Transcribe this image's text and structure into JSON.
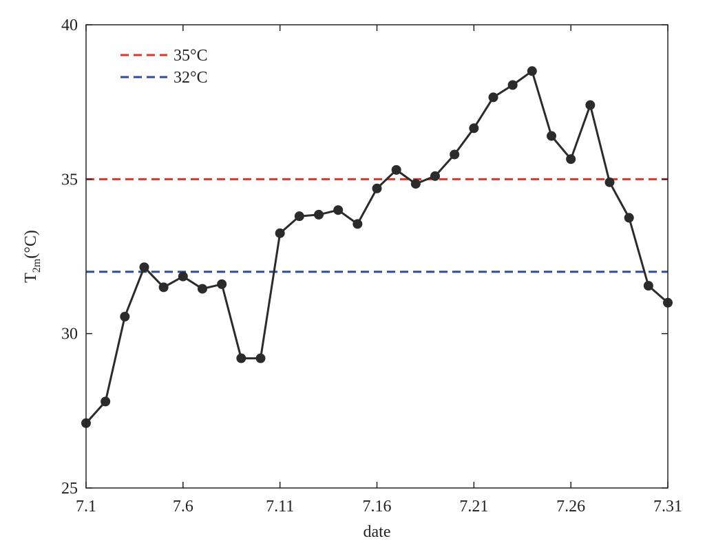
{
  "chart_data": {
    "type": "line",
    "title": "",
    "xlabel": "date",
    "ylabel": {
      "base": "T",
      "subscript": "2m",
      "unit": "(°C)"
    },
    "x": [
      "7.1",
      "7.2",
      "7.3",
      "7.4",
      "7.5",
      "7.6",
      "7.7",
      "7.8",
      "7.9",
      "7.10",
      "7.11",
      "7.12",
      "7.13",
      "7.14",
      "7.15",
      "7.16",
      "7.17",
      "7.18",
      "7.19",
      "7.20",
      "7.21",
      "7.22",
      "7.23",
      "7.24",
      "7.25",
      "7.26",
      "7.27",
      "7.28",
      "7.29",
      "7.30",
      "7.31"
    ],
    "x_ticks": [
      "7.1",
      "7.6",
      "7.11",
      "7.16",
      "7.21",
      "7.26",
      "7.31"
    ],
    "y_ticks": [
      "25",
      "30",
      "35",
      "40"
    ],
    "ylim": [
      25,
      40
    ],
    "grid": false,
    "legend_position": "top-left",
    "series": [
      {
        "values": [
          27.1,
          27.8,
          30.55,
          32.15,
          31.5,
          31.85,
          31.45,
          31.6,
          29.2,
          29.2,
          33.25,
          33.8,
          33.85,
          34.0,
          33.55,
          34.7,
          35.3,
          34.85,
          35.1,
          35.8,
          36.65,
          37.65,
          38.05,
          38.5,
          36.4,
          35.65,
          37.4,
          34.9,
          33.75,
          31.55,
          31.0
        ],
        "color": "#2b2b2b"
      }
    ],
    "reference_lines": [
      {
        "label": "35°C",
        "value": 35,
        "color": "#d9372b"
      },
      {
        "label": "32°C",
        "value": 32,
        "color": "#2d4a9c"
      }
    ]
  }
}
